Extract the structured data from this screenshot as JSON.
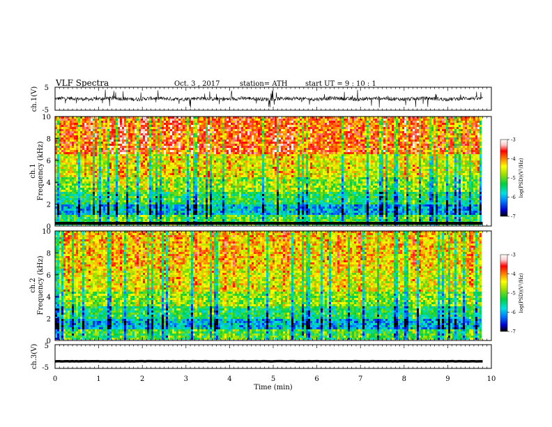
{
  "header": {
    "title": "VLF  Spectra",
    "date": "Oct. 3  , 2017",
    "station": "station= ATH",
    "start": "start  UT  =   9  : 10 : 1"
  },
  "chart_data": [
    {
      "type": "line",
      "panel": "ch1-waveform",
      "ylabel": "ch.1(V)",
      "yticks": [
        "5",
        "-5"
      ],
      "ylim": [
        -5,
        5
      ],
      "xlim": [
        0,
        10
      ],
      "data_end_min": 9.8,
      "signal": "noisy waveform, mostly within about ±1 V with spikes to about ±4 V",
      "color": "#000000"
    },
    {
      "type": "heatmap",
      "panel": "ch1-spectrogram",
      "ylabel": "ch.1\nFrequency  (kHz)",
      "ylabel_lines": [
        "ch.1",
        "Frequency  (kHz)"
      ],
      "yticks": [
        "0",
        "2",
        "4",
        "6",
        "8",
        "10"
      ],
      "ylim": [
        0,
        10
      ],
      "xlim": [
        0,
        10
      ],
      "colorbar": {
        "label": "log(PSD)(V²/Hz)",
        "ticks": [
          "-3",
          "-4",
          "-5",
          "-6",
          "-7"
        ],
        "range": [
          -7,
          -3
        ],
        "colors": [
          "#000000",
          "#0000cc",
          "#0080ff",
          "#00e0e0",
          "#00d040",
          "#a0e000",
          "#ffff00",
          "#ff8000",
          "#ff0000",
          "#ffc8c8",
          "#ffffff"
        ]
      }
    },
    {
      "type": "heatmap",
      "panel": "ch2-spectrogram",
      "ylabel": "ch.2\nFrequency  (kHz)",
      "ylabel_lines": [
        "ch.2",
        "Frequency  (kHz)"
      ],
      "yticks": [
        "0",
        "2",
        "4",
        "6",
        "8",
        "10"
      ],
      "ylim": [
        0,
        10
      ],
      "xlim": [
        0,
        10
      ],
      "colorbar": {
        "label": "log(PSD)(V²/Hz)",
        "ticks": [
          "-3",
          "-4",
          "-5",
          "-6",
          "-7"
        ],
        "range": [
          -7,
          -3
        ],
        "colors": [
          "#000000",
          "#0000cc",
          "#0080ff",
          "#00e0e0",
          "#00d040",
          "#a0e000",
          "#ffff00",
          "#ff8000",
          "#ff0000",
          "#ffc8c8",
          "#ffffff"
        ]
      }
    },
    {
      "type": "line",
      "panel": "ch3-waveform",
      "ylabel": "ch.3(V)",
      "yticks": [
        "5",
        "-5"
      ],
      "ylim": [
        -5,
        5
      ],
      "xlim": [
        0,
        10
      ],
      "data_end_min": 9.8,
      "signal": "flat thick line at about -2 V",
      "color": "#000000"
    }
  ],
  "xaxis": {
    "label": "Time  (min)",
    "ticks": [
      "0",
      "1",
      "2",
      "3",
      "4",
      "5",
      "6",
      "7",
      "8",
      "9",
      "10"
    ],
    "range": [
      0,
      10
    ]
  }
}
